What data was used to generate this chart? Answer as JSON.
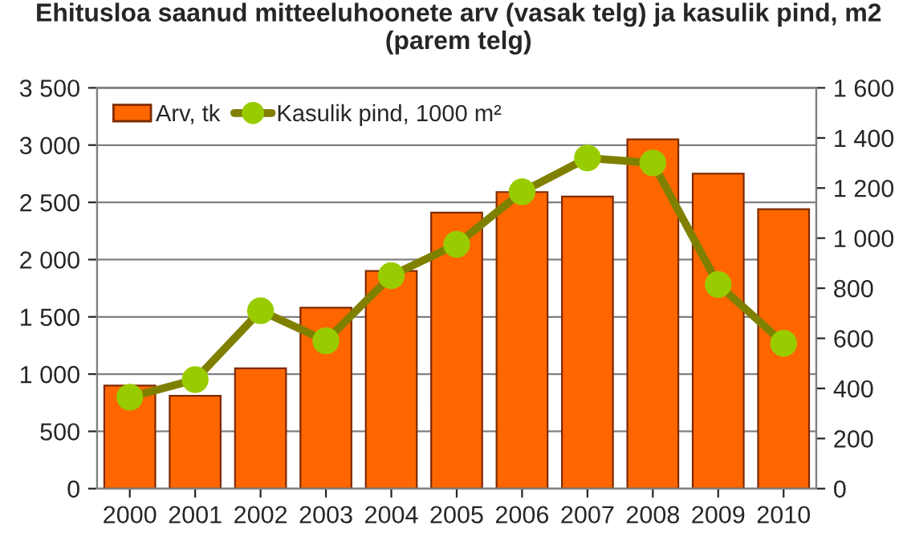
{
  "chart_data": {
    "type": "bar",
    "title": "Ehitusloa saanud mitteeluhoonete arv (vasak telg) ja kasulik pind, m2 (parem telg)",
    "categories": [
      "2000",
      "2001",
      "2002",
      "2003",
      "2004",
      "2005",
      "2006",
      "2007",
      "2008",
      "2009",
      "2010"
    ],
    "series": [
      {
        "name": "Arv, tk",
        "color": "#ff6600",
        "values": [
          900,
          810,
          1050,
          1580,
          1900,
          2410,
          2590,
          2550,
          3050,
          2750,
          2440
        ]
      },
      {
        "name": "Kasulik pind, 1000 m²",
        "type": "line",
        "axis": "y2",
        "color": "#808000",
        "marker": "circle",
        "values": [
          365,
          435,
          710,
          590,
          850,
          975,
          1185,
          1320,
          1300,
          815,
          580
        ]
      }
    ],
    "ylim": [
      0,
      3500
    ],
    "yticks": [
      0,
      500,
      {
        "value": 1000,
        "label": "1 000"
      },
      {
        "value": 1500,
        "label": "1 500"
      },
      {
        "value": 2000,
        "label": "2 000"
      },
      {
        "value": 2500,
        "label": "2 500"
      },
      {
        "value": 3000,
        "label": "3 000"
      },
      {
        "value": 3500,
        "label": "3 500"
      }
    ],
    "y2lim": [
      0,
      1600
    ],
    "y2ticks": [
      0,
      200,
      400,
      600,
      800,
      {
        "value": 1000,
        "label": "1 000"
      },
      {
        "value": 1200,
        "label": "1 200"
      },
      {
        "value": 1400,
        "label": "1 400"
      },
      {
        "value": 1600,
        "label": "1 600"
      }
    ],
    "grid": "y",
    "legend": "top left"
  }
}
